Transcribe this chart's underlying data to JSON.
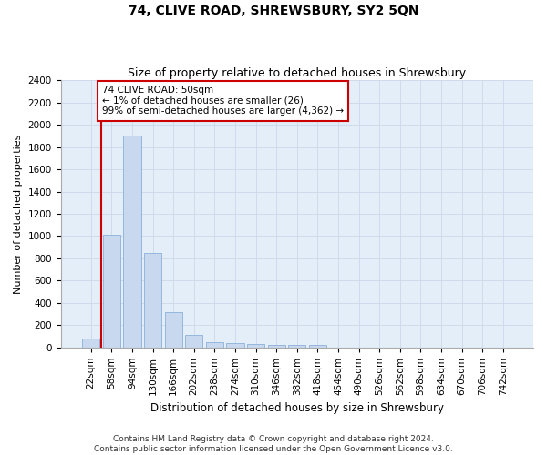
{
  "title": "74, CLIVE ROAD, SHREWSBURY, SY2 5QN",
  "subtitle": "Size of property relative to detached houses in Shrewsbury",
  "xlabel": "Distribution of detached houses by size in Shrewsbury",
  "ylabel": "Number of detached properties",
  "bar_labels": [
    "22sqm",
    "58sqm",
    "94sqm",
    "130sqm",
    "166sqm",
    "202sqm",
    "238sqm",
    "274sqm",
    "310sqm",
    "346sqm",
    "382sqm",
    "418sqm",
    "454sqm",
    "490sqm",
    "526sqm",
    "562sqm",
    "598sqm",
    "634sqm",
    "670sqm",
    "706sqm",
    "742sqm"
  ],
  "bar_values": [
    80,
    1010,
    1900,
    850,
    320,
    110,
    50,
    40,
    30,
    20,
    20,
    20,
    0,
    0,
    0,
    0,
    0,
    0,
    0,
    0,
    0
  ],
  "bar_color": "#c8d8ee",
  "bar_edge_color": "#8ab0d8",
  "annotation_text": "74 CLIVE ROAD: 50sqm\n← 1% of detached houses are smaller (26)\n99% of semi-detached houses are larger (4,362) →",
  "annotation_box_color": "#ffffff",
  "annotation_box_edge_color": "#cc0000",
  "red_line_color": "#cc0000",
  "ylim": [
    0,
    2400
  ],
  "yticks": [
    0,
    200,
    400,
    600,
    800,
    1000,
    1200,
    1400,
    1600,
    1800,
    2000,
    2200,
    2400
  ],
  "grid_color": "#ccd8e8",
  "background_color": "#e4eef8",
  "footer_text": "Contains HM Land Registry data © Crown copyright and database right 2024.\nContains public sector information licensed under the Open Government Licence v3.0.",
  "title_fontsize": 10,
  "subtitle_fontsize": 9,
  "xlabel_fontsize": 8.5,
  "ylabel_fontsize": 8,
  "tick_fontsize": 7.5,
  "annotation_fontsize": 7.5,
  "footer_fontsize": 6.5
}
